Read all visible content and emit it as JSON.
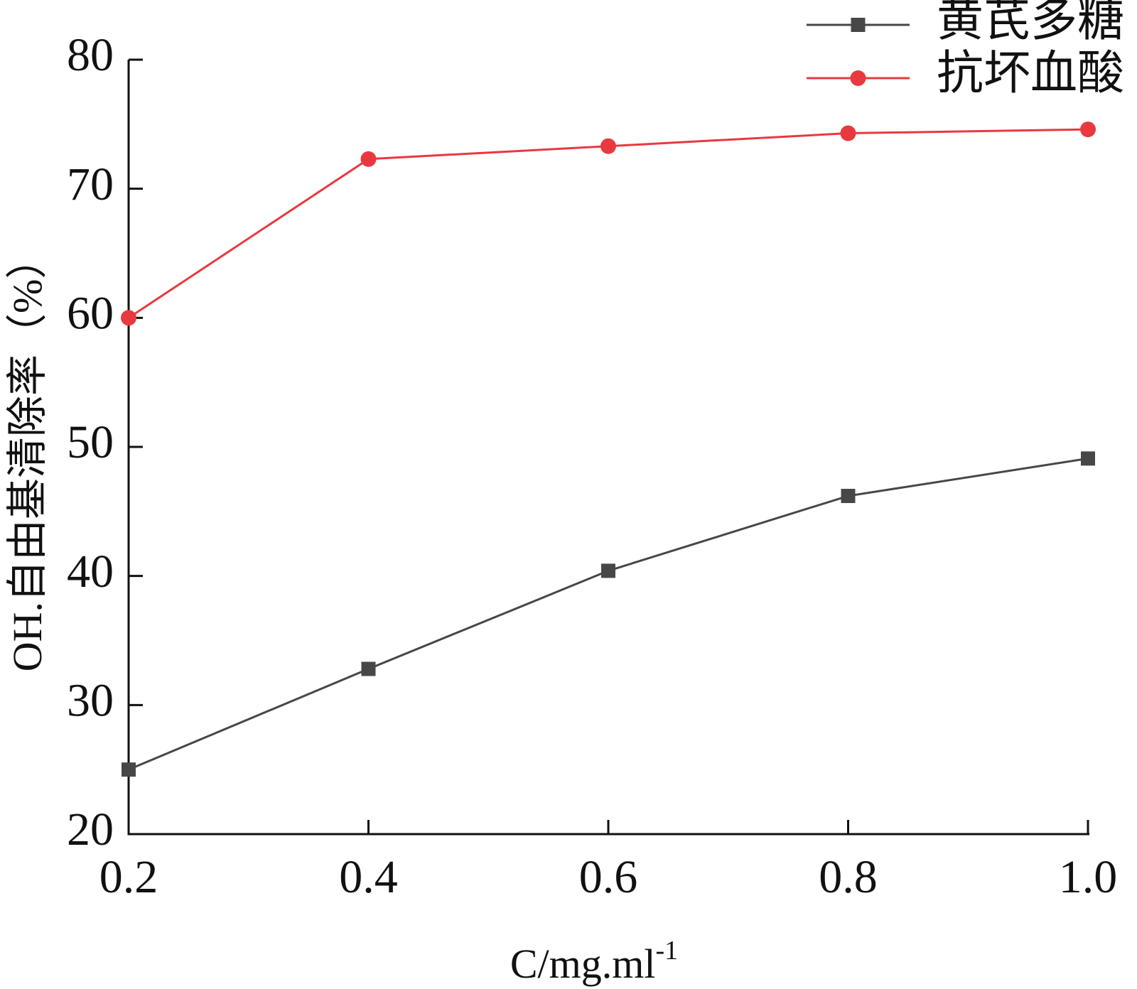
{
  "chart_data": {
    "type": "line",
    "title": "",
    "xlabel": "C/mg.ml",
    "xlabel_superscript": "-1",
    "ylabel": "OH.自由基清除率（%）",
    "x": [
      0.2,
      0.4,
      0.6,
      0.8,
      1.0
    ],
    "x_tick_labels": [
      "0.2",
      "0.4",
      "0.6",
      "0.8",
      "1.0"
    ],
    "y_ticks": [
      20,
      30,
      40,
      50,
      60,
      70,
      80
    ],
    "y_tick_labels": [
      "20",
      "30",
      "40",
      "50",
      "60",
      "70",
      "80"
    ],
    "xlim": [
      0.2,
      1.0
    ],
    "ylim": [
      20,
      80
    ],
    "grid": false,
    "legend_position": "top-right",
    "series": [
      {
        "name": "黄芪多糖",
        "marker": "square",
        "color": "#474747",
        "values": [
          25.0,
          32.8,
          40.4,
          46.2,
          49.1
        ]
      },
      {
        "name": "抗坏血酸",
        "marker": "circle",
        "color": "#e8393f",
        "values": [
          60.0,
          72.3,
          73.3,
          74.3,
          74.6
        ]
      }
    ]
  }
}
